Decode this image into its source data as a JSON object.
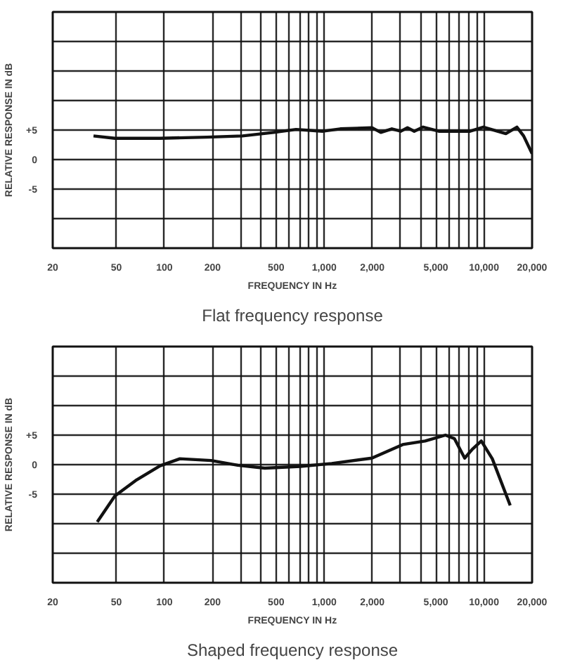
{
  "chart_data": [
    {
      "type": "line",
      "title": "Flat frequency response",
      "xlabel": "FREQUENCY IN Hz",
      "ylabel": "RELATIVE RESPONSE IN dB",
      "log": "x",
      "grid": true,
      "x": [
        36,
        49,
        94,
        184,
        308,
        483,
        666,
        980,
        1260,
        1990,
        2260,
        2650,
        3020,
        3320,
        3660,
        4160,
        5210,
        8180,
        9920,
        13700,
        16070,
        17700,
        20000
      ],
      "series": [
        {
          "color": "#111111",
          "values": [
            4.0,
            3.6,
            3.6,
            3.8,
            4.0,
            4.6,
            5.1,
            4.8,
            5.2,
            5.4,
            4.6,
            5.2,
            4.8,
            5.4,
            4.8,
            5.5,
            4.8,
            4.8,
            5.5,
            4.4,
            5.5,
            4.0,
            1.0
          ]
        }
      ],
      "xlim": [
        20,
        20000
      ],
      "ylim": [
        -15,
        25
      ],
      "xticks": [
        20,
        50,
        100,
        200,
        {
          "value": 300,
          "label": null
        },
        {
          "value": 400,
          "label": null
        },
        500,
        {
          "value": 600,
          "label": null
        },
        {
          "value": 700,
          "label": null
        },
        {
          "value": 800,
          "label": null
        },
        {
          "value": 900,
          "label": null
        },
        {
          "value": 1000,
          "label": "1,000"
        },
        {
          "value": 2000,
          "label": "2,000"
        },
        {
          "value": 3000,
          "label": null
        },
        {
          "value": 4000,
          "label": null
        },
        {
          "value": 5000,
          "label": "5,000"
        },
        {
          "value": 6000,
          "label": null
        },
        {
          "value": 7000,
          "label": null
        },
        {
          "value": 8000,
          "label": null
        },
        {
          "value": 9000,
          "label": null
        },
        {
          "value": 10000,
          "label": "10,000"
        },
        {
          "value": 20000,
          "label": "20,000"
        }
      ],
      "yticks": [
        {
          "value": -15,
          "label": null
        },
        {
          "value": -10,
          "label": null
        },
        -5,
        0,
        {
          "value": 5,
          "label": "+5"
        },
        {
          "value": 10,
          "label": null
        },
        {
          "value": 15,
          "label": null
        },
        {
          "value": 20,
          "label": null
        },
        {
          "value": 25,
          "label": null
        }
      ]
    },
    {
      "type": "line",
      "title": "Shaped frequency response",
      "xlabel": "FREQUENCY IN Hz",
      "ylabel": "RELATIVE RESPONSE IN dB",
      "log": "x",
      "grid": true,
      "x": [
        38,
        49,
        66,
        94,
        125,
        196,
        288,
        425,
        710,
        1114,
        1987,
        3100,
        4280,
        5740,
        6530,
        7570,
        8450,
        9620,
        11270,
        14590
      ],
      "series": [
        {
          "color": "#111111",
          "values": [
            -9.7,
            -5.3,
            -2.7,
            -0.2,
            1.0,
            0.7,
            -0.1,
            -0.6,
            -0.3,
            0.2,
            1.1,
            3.4,
            4.0,
            5.0,
            4.4,
            1.1,
            2.6,
            4.0,
            1.0,
            -6.9
          ]
        }
      ],
      "xlim": [
        20,
        20000
      ],
      "ylim": [
        -20,
        20
      ],
      "xticks": [
        20,
        50,
        100,
        200,
        {
          "value": 300,
          "label": null
        },
        {
          "value": 400,
          "label": null
        },
        500,
        {
          "value": 600,
          "label": null
        },
        {
          "value": 700,
          "label": null
        },
        {
          "value": 800,
          "label": null
        },
        {
          "value": 900,
          "label": null
        },
        {
          "value": 1000,
          "label": "1,000"
        },
        {
          "value": 2000,
          "label": "2,000"
        },
        {
          "value": 3000,
          "label": null
        },
        {
          "value": 4000,
          "label": null
        },
        {
          "value": 5000,
          "label": "5,000"
        },
        {
          "value": 6000,
          "label": null
        },
        {
          "value": 7000,
          "label": null
        },
        {
          "value": 8000,
          "label": null
        },
        {
          "value": 9000,
          "label": null
        },
        {
          "value": 10000,
          "label": "10,000"
        },
        {
          "value": 20000,
          "label": "20,000"
        }
      ],
      "yticks": [
        {
          "value": -20,
          "label": null
        },
        {
          "value": -15,
          "label": null
        },
        {
          "value": -10,
          "label": null
        },
        -5,
        0,
        {
          "value": 5,
          "label": "+5"
        },
        {
          "value": 10,
          "label": null
        },
        {
          "value": 15,
          "label": null
        },
        {
          "value": 20,
          "label": null
        }
      ]
    }
  ]
}
